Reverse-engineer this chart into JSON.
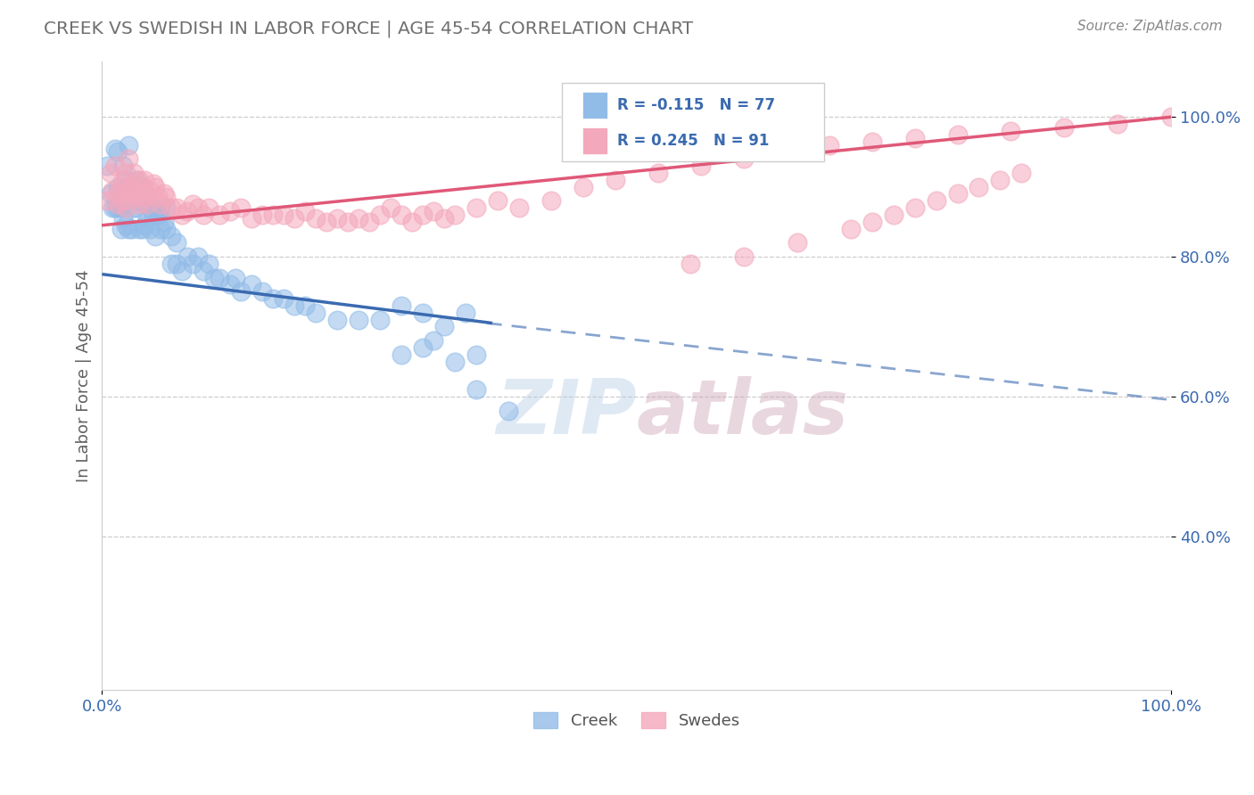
{
  "title": "CREEK VS SWEDISH IN LABOR FORCE | AGE 45-54 CORRELATION CHART",
  "source_text": "Source: ZipAtlas.com",
  "ylabel": "In Labor Force | Age 45-54",
  "x_min": 0.0,
  "x_max": 1.0,
  "y_min": 0.18,
  "y_max": 1.08,
  "x_ticks": [
    0.0,
    1.0
  ],
  "x_tick_labels": [
    "0.0%",
    "100.0%"
  ],
  "y_ticks": [
    0.4,
    0.6,
    0.8,
    1.0
  ],
  "y_tick_labels": [
    "40.0%",
    "60.0%",
    "80.0%",
    "100.0%"
  ],
  "creek_color": "#92bce8",
  "swedes_color": "#f4a8bc",
  "creek_R": -0.115,
  "creek_N": 77,
  "swedes_R": 0.245,
  "swedes_N": 91,
  "creek_line_color": "#3a6ab0",
  "swedes_line_color": "#e05878",
  "legend_R_color": "#3a6ab0",
  "legend_label1": "Creek",
  "legend_label2": "Swedes",
  "background_color": "#ffffff",
  "grid_color": "#cccccc",
  "title_color": "#707070",
  "watermark_color": "#d0e0f0",
  "creek_x": [
    0.005,
    0.008,
    0.01,
    0.012,
    0.012,
    0.015,
    0.015,
    0.015,
    0.018,
    0.018,
    0.02,
    0.02,
    0.022,
    0.022,
    0.025,
    0.025,
    0.025,
    0.028,
    0.028,
    0.03,
    0.03,
    0.032,
    0.032,
    0.035,
    0.035,
    0.038,
    0.038,
    0.04,
    0.04,
    0.042,
    0.045,
    0.045,
    0.048,
    0.05,
    0.05,
    0.052,
    0.055,
    0.055,
    0.058,
    0.06,
    0.06,
    0.065,
    0.065,
    0.07,
    0.07,
    0.075,
    0.08,
    0.085,
    0.09,
    0.095,
    0.1,
    0.105,
    0.11,
    0.12,
    0.125,
    0.13,
    0.14,
    0.15,
    0.16,
    0.17,
    0.18,
    0.19,
    0.2,
    0.22,
    0.24,
    0.26,
    0.28,
    0.3,
    0.32,
    0.34,
    0.28,
    0.3,
    0.31,
    0.33,
    0.35,
    0.35,
    0.38
  ],
  "creek_y": [
    0.93,
    0.89,
    0.87,
    0.955,
    0.87,
    0.95,
    0.87,
    0.9,
    0.87,
    0.84,
    0.93,
    0.855,
    0.91,
    0.845,
    0.96,
    0.9,
    0.84,
    0.9,
    0.84,
    0.905,
    0.87,
    0.91,
    0.87,
    0.88,
    0.84,
    0.9,
    0.84,
    0.89,
    0.845,
    0.855,
    0.87,
    0.84,
    0.86,
    0.87,
    0.83,
    0.86,
    0.87,
    0.84,
    0.85,
    0.87,
    0.84,
    0.83,
    0.79,
    0.82,
    0.79,
    0.78,
    0.8,
    0.79,
    0.8,
    0.78,
    0.79,
    0.77,
    0.77,
    0.76,
    0.77,
    0.75,
    0.76,
    0.75,
    0.74,
    0.74,
    0.73,
    0.73,
    0.72,
    0.71,
    0.71,
    0.71,
    0.73,
    0.72,
    0.7,
    0.72,
    0.66,
    0.67,
    0.68,
    0.65,
    0.66,
    0.61,
    0.58
  ],
  "swedes_x": [
    0.005,
    0.008,
    0.01,
    0.012,
    0.015,
    0.015,
    0.018,
    0.02,
    0.02,
    0.022,
    0.022,
    0.025,
    0.025,
    0.028,
    0.03,
    0.03,
    0.032,
    0.035,
    0.035,
    0.038,
    0.04,
    0.04,
    0.042,
    0.045,
    0.048,
    0.05,
    0.052,
    0.055,
    0.058,
    0.06,
    0.065,
    0.07,
    0.075,
    0.08,
    0.085,
    0.09,
    0.095,
    0.1,
    0.11,
    0.12,
    0.13,
    0.14,
    0.15,
    0.16,
    0.17,
    0.18,
    0.19,
    0.2,
    0.21,
    0.22,
    0.23,
    0.24,
    0.25,
    0.26,
    0.27,
    0.28,
    0.29,
    0.3,
    0.31,
    0.32,
    0.33,
    0.35,
    0.37,
    0.39,
    0.42,
    0.45,
    0.48,
    0.52,
    0.56,
    0.6,
    0.64,
    0.68,
    0.72,
    0.76,
    0.8,
    0.85,
    0.9,
    0.95,
    1.0,
    0.55,
    0.6,
    0.65,
    0.7,
    0.72,
    0.74,
    0.76,
    0.78,
    0.8,
    0.82,
    0.84,
    0.86
  ],
  "swedes_y": [
    0.88,
    0.92,
    0.895,
    0.93,
    0.89,
    0.875,
    0.9,
    0.91,
    0.88,
    0.92,
    0.87,
    0.94,
    0.895,
    0.9,
    0.92,
    0.89,
    0.885,
    0.91,
    0.875,
    0.9,
    0.91,
    0.885,
    0.875,
    0.895,
    0.905,
    0.9,
    0.885,
    0.875,
    0.89,
    0.885,
    0.87,
    0.87,
    0.86,
    0.865,
    0.875,
    0.87,
    0.86,
    0.87,
    0.86,
    0.865,
    0.87,
    0.855,
    0.86,
    0.86,
    0.86,
    0.855,
    0.865,
    0.855,
    0.85,
    0.855,
    0.85,
    0.855,
    0.85,
    0.86,
    0.87,
    0.86,
    0.85,
    0.86,
    0.865,
    0.855,
    0.86,
    0.87,
    0.88,
    0.87,
    0.88,
    0.9,
    0.91,
    0.92,
    0.93,
    0.94,
    0.95,
    0.96,
    0.965,
    0.97,
    0.975,
    0.98,
    0.985,
    0.99,
    1.0,
    0.79,
    0.8,
    0.82,
    0.84,
    0.85,
    0.86,
    0.87,
    0.88,
    0.89,
    0.9,
    0.91,
    0.92
  ],
  "dashed_line_x": [
    0.36,
    1.0
  ],
  "dashed_line_y_start": 0.705,
  "dashed_line_y_end": 0.595,
  "creek_line_x0": 0.0,
  "creek_line_y0": 0.775,
  "creek_line_x1": 0.365,
  "creek_line_y1": 0.705,
  "swedes_line_x0": 0.0,
  "swedes_line_y0": 0.845,
  "swedes_line_x1": 1.0,
  "swedes_line_y1": 1.0
}
